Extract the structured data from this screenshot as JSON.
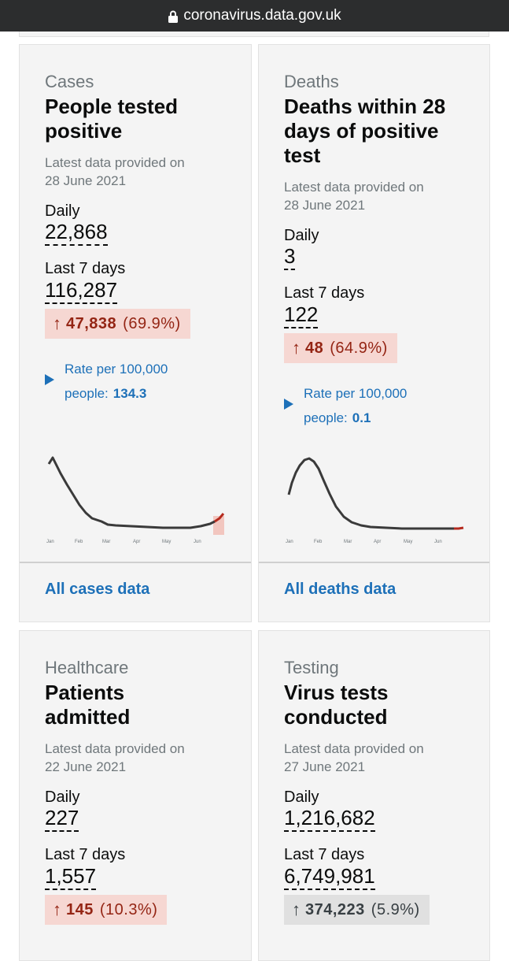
{
  "browser": {
    "url": "coronavirus.data.gov.uk"
  },
  "cards": [
    {
      "category": "Cases",
      "title": "People tested positive",
      "latest": "Latest data provided on 28 June 2021",
      "daily_label": "Daily",
      "daily_value": "22,868",
      "week_label": "Last 7 days",
      "week_value": "116,287",
      "change_value": "47,838",
      "change_pct": "(69.9%)",
      "change_arrow": "↑",
      "rate_label": "Rate per 100,000 people:",
      "rate_value": "134.3",
      "months": [
        "Jan",
        "Feb",
        "Mar",
        "Apr",
        "May",
        "Jun"
      ],
      "link": "All cases data"
    },
    {
      "category": "Deaths",
      "title": "Deaths within 28 days of positive test",
      "latest": "Latest data provided on 28 June 2021",
      "daily_label": "Daily",
      "daily_value": "3",
      "week_label": "Last 7 days",
      "week_value": "122",
      "change_value": "48",
      "change_pct": "(64.9%)",
      "change_arrow": "↑",
      "rate_label": "Rate per 100,000 people:",
      "rate_value": "0.1",
      "months": [
        "Jan",
        "Feb",
        "Mar",
        "Apr",
        "May",
        "Jun"
      ],
      "link": "All deaths data"
    },
    {
      "category": "Healthcare",
      "title": "Patients admitted",
      "latest": "Latest data provided on 22 June 2021",
      "daily_label": "Daily",
      "daily_value": "227",
      "week_label": "Last 7 days",
      "week_value": "1,557",
      "change_value": "145",
      "change_pct": "(10.3%)",
      "change_arrow": "↑"
    },
    {
      "category": "Testing",
      "title": "Virus tests conducted",
      "latest": "Latest data provided on 27 June 2021",
      "daily_label": "Daily",
      "daily_value": "1,216,682",
      "week_label": "Last 7 days",
      "week_value": "6,749,981",
      "change_value": "374,223",
      "change_pct": "(5.9%)",
      "change_arrow": "↑"
    }
  ],
  "colors": {
    "link": "#1d70b8",
    "up_bg": "#f6d7d2",
    "up_text": "#942514",
    "neutral_bg": "#e0e0e0",
    "line": "#3a3a3a",
    "recent": "#b52a1e"
  }
}
